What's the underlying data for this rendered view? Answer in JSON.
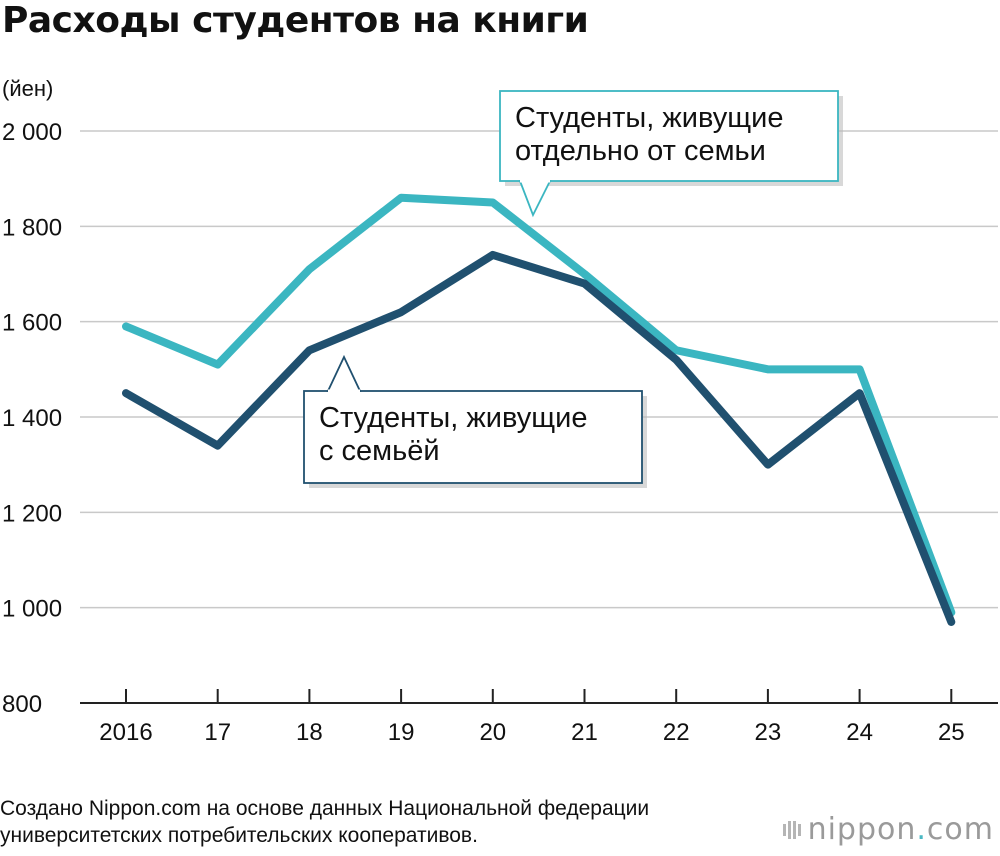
{
  "title": "Расходы студентов на книги",
  "source": {
    "line1": "Создано Nippon.com на основе данных Национальной федерации",
    "line2": "университетских потребительских кооперативов."
  },
  "logo": {
    "name": "nippon",
    "dot": ".",
    "suffix": "com"
  },
  "colors": {
    "separate": "#3bb6c1",
    "family": "#20506f",
    "grid": "#c9c9c9",
    "axis": "#222222"
  },
  "chart_data": {
    "type": "line",
    "title": "Расходы студентов на книги",
    "unit_label": "(йен)",
    "xlabel": "",
    "ylabel": "(йен)",
    "categories": [
      "2016",
      "17",
      "18",
      "19",
      "20",
      "21",
      "22",
      "23",
      "24",
      "25"
    ],
    "ylim": [
      800,
      2000
    ],
    "yticks": [
      800,
      1000,
      1200,
      1400,
      1600,
      1800,
      2000
    ],
    "ytick_labels": [
      "800",
      "1 000",
      "1 200",
      "1 400",
      "1 600",
      "1 800",
      "2 000"
    ],
    "grid": true,
    "series": [
      {
        "name": "Студенты, живущие отдельно от семьи",
        "label_lines": [
          "Студенты, живущие",
          "отдельно от семьи"
        ],
        "color": "#3bb6c1",
        "values": [
          1590,
          1510,
          1710,
          1860,
          1850,
          1700,
          1540,
          1500,
          1500,
          990
        ]
      },
      {
        "name": "Студенты, живущие с семьёй",
        "label_lines": [
          "Студенты, живущие",
          "с семьёй"
        ],
        "color": "#20506f",
        "values": [
          1450,
          1340,
          1540,
          1620,
          1740,
          1680,
          1520,
          1300,
          1450,
          970
        ]
      }
    ]
  }
}
